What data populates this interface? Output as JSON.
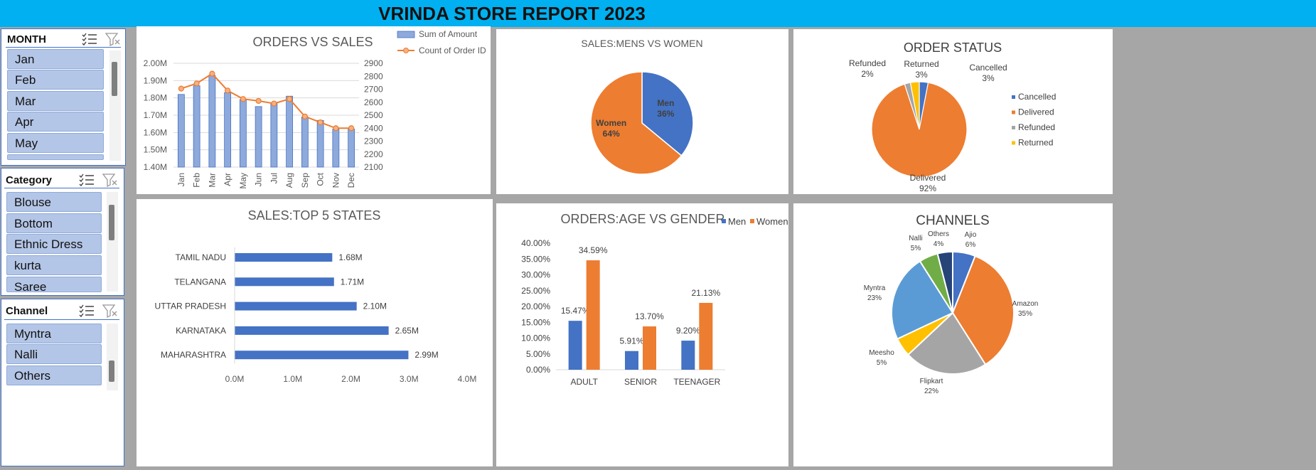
{
  "report": {
    "title": "VRINDA STORE REPORT 2023"
  },
  "slicers": {
    "month": {
      "title": "MONTH",
      "items": [
        "Jan",
        "Feb",
        "Mar",
        "Apr",
        "May"
      ]
    },
    "category": {
      "title": "Category",
      "items": [
        "Blouse",
        "Bottom",
        "Ethnic Dress",
        "kurta",
        "Saree"
      ]
    },
    "channel": {
      "title": "Channel",
      "items": [
        "Myntra",
        "Nalli",
        "Others"
      ]
    }
  },
  "chart_data": [
    {
      "id": "orders_vs_sales",
      "type": "bar+line",
      "title": "ORDERS VS SALES",
      "categories": [
        "Jan",
        "Feb",
        "Mar",
        "Apr",
        "May",
        "Jun",
        "Jul",
        "Aug",
        "Sep",
        "Oct",
        "Nov",
        "Dec"
      ],
      "series": [
        {
          "name": "Sum of Amount",
          "type": "bar",
          "axis": "left",
          "color": "#8ea9db",
          "values": [
            1.82,
            1.87,
            1.93,
            1.83,
            1.79,
            1.75,
            1.77,
            1.81,
            1.69,
            1.67,
            1.62,
            1.62
          ]
        },
        {
          "name": "Count of Order ID",
          "type": "line",
          "axis": "right",
          "color": "#ed7d31",
          "values": [
            2705,
            2745,
            2820,
            2690,
            2625,
            2610,
            2590,
            2625,
            2490,
            2445,
            2400,
            2400
          ]
        }
      ],
      "y_left": {
        "ticks": [
          "2.00M",
          "1.90M",
          "1.80M",
          "1.70M",
          "1.60M",
          "1.50M",
          "1.40M"
        ],
        "min": 1.4,
        "max": 2.0
      },
      "y_right": {
        "ticks": [
          "2900",
          "2800",
          "2700",
          "2600",
          "2500",
          "2400",
          "2300",
          "2200",
          "2100"
        ],
        "min": 2100,
        "max": 2900
      },
      "grid": true,
      "legend": "top-right"
    },
    {
      "id": "sales_men_women",
      "type": "pie",
      "title": "SALES:MENS VS WOMEN",
      "slices": [
        {
          "name": "Men",
          "value": 36,
          "label": "36%",
          "color": "#4472c4"
        },
        {
          "name": "Women",
          "value": 64,
          "label": "64%",
          "color": "#ed7d31"
        }
      ]
    },
    {
      "id": "order_status",
      "type": "pie",
      "title": "ORDER STATUS",
      "slices": [
        {
          "name": "Cancelled",
          "value": 3,
          "label": "3%",
          "color": "#4472c4"
        },
        {
          "name": "Delivered",
          "value": 92,
          "label": "92%",
          "color": "#ed7d31"
        },
        {
          "name": "Refunded",
          "value": 2,
          "label": "2%",
          "color": "#a5a5a5"
        },
        {
          "name": "Returned",
          "value": 3,
          "label": "3%",
          "color": "#ffc000"
        }
      ],
      "legend": "right"
    },
    {
      "id": "top5_states",
      "type": "bar",
      "orientation": "horizontal",
      "title": "SALES:TOP 5 STATES",
      "categories": [
        "TAMIL NADU",
        "TELANGANA",
        "UTTAR PRADESH",
        "KARNATAKA",
        "MAHARASHTRA"
      ],
      "values": [
        1.68,
        1.71,
        2.1,
        2.65,
        2.99
      ],
      "labels": [
        "1.68M",
        "1.71M",
        "2.10M",
        "2.65M",
        "2.99M"
      ],
      "x_ticks": [
        "0.0M",
        "1.0M",
        "2.0M",
        "3.0M",
        "4.0M"
      ],
      "xlim": [
        0,
        4
      ],
      "color": "#4472c4"
    },
    {
      "id": "age_vs_gender",
      "type": "bar",
      "title": "ORDERS:AGE VS GENDER",
      "categories": [
        "ADULT",
        "SENIOR",
        "TEENAGER"
      ],
      "series": [
        {
          "name": "Men",
          "values": [
            15.47,
            5.91,
            9.2
          ],
          "labels": [
            "15.47%",
            "5.91%",
            "9.20%"
          ],
          "color": "#4472c4"
        },
        {
          "name": "Women",
          "values": [
            34.59,
            13.7,
            21.13
          ],
          "labels": [
            "34.59%",
            "13.70%",
            "21.13%"
          ],
          "color": "#ed7d31"
        }
      ],
      "y_ticks": [
        "40.00%",
        "35.00%",
        "30.00%",
        "25.00%",
        "20.00%",
        "15.00%",
        "10.00%",
        "5.00%",
        "0.00%"
      ],
      "ylim": [
        0,
        40
      ],
      "legend": "top-right"
    },
    {
      "id": "channels",
      "type": "pie",
      "title": "CHANNELS",
      "slices": [
        {
          "name": "Ajio",
          "value": 6,
          "label": "6%",
          "color": "#4472c4"
        },
        {
          "name": "Amazon",
          "value": 35,
          "label": "35%",
          "color": "#ed7d31"
        },
        {
          "name": "Flipkart",
          "value": 22,
          "label": "22%",
          "color": "#a5a5a5"
        },
        {
          "name": "Meesho",
          "value": 5,
          "label": "5%",
          "color": "#ffc000"
        },
        {
          "name": "Myntra",
          "value": 23,
          "label": "23%",
          "color": "#5b9bd5"
        },
        {
          "name": "Nalli",
          "value": 5,
          "label": "5%",
          "color": "#70ad47"
        },
        {
          "name": "Others",
          "value": 4,
          "label": "4%",
          "color": "#264478"
        }
      ]
    }
  ]
}
